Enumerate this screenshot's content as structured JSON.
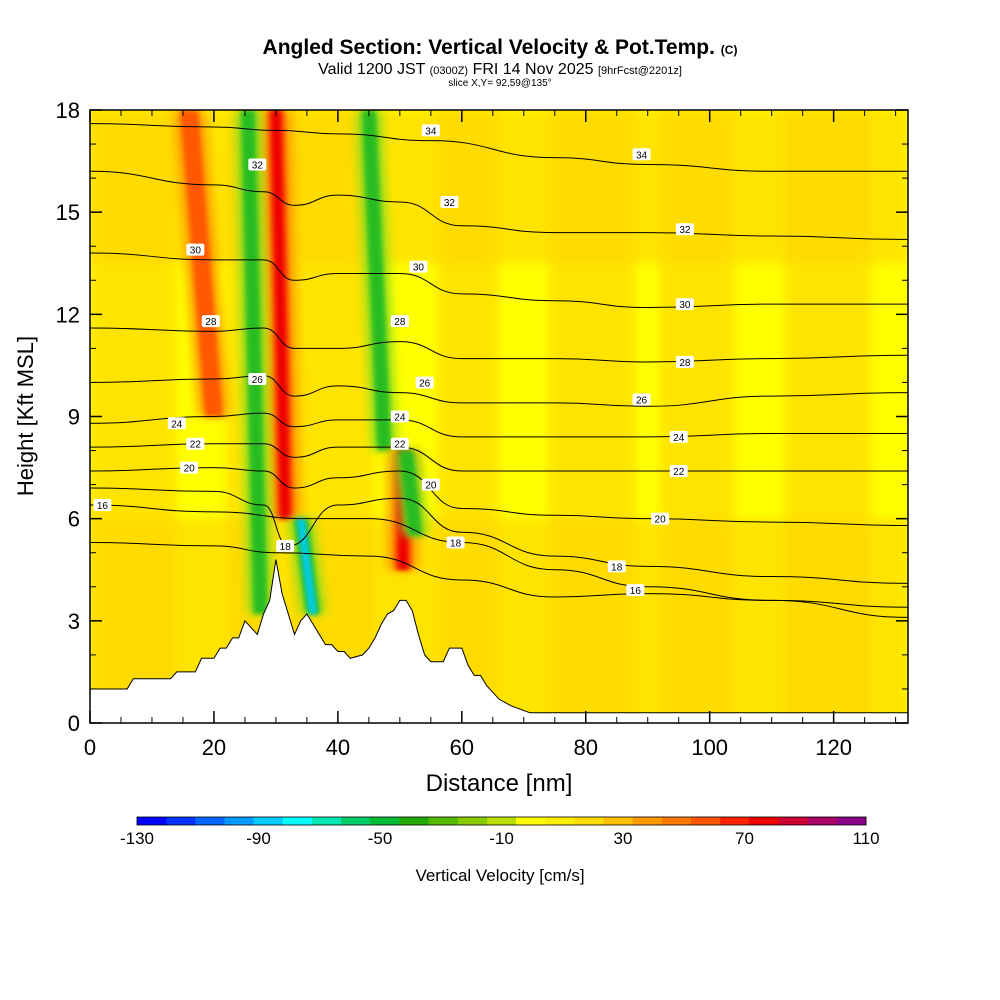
{
  "header": {
    "title": "Angled Section: Vertical Velocity & Pot.Temp.",
    "copyright": "(C)",
    "valid_prefix": "Valid 1200 JST",
    "valid_z": "(0300Z)",
    "valid_date": "FRI 14 Nov 2025",
    "forecast": "[9hrFcst@2201z]",
    "slice": "slice X,Y= 92,59@135°"
  },
  "colors": {
    "bg_yellow": "#ffff00",
    "gold": "#ffd700",
    "orange": "#ff9900",
    "orange_red": "#ff5500",
    "red": "#ee0000",
    "green": "#22bb22",
    "light_green": "#88dd22",
    "cyan": "#00ccee",
    "terrain": "#ffffff"
  },
  "chart_data": {
    "type": "heatmap",
    "title": "Angled Section: Vertical Velocity & Pot.Temp.",
    "xlabel": "Distance [nm]",
    "ylabel": "Height [Kft MSL]",
    "xlim": [
      0,
      132
    ],
    "ylim": [
      0,
      18
    ],
    "x_ticks": [
      0,
      20,
      40,
      60,
      80,
      100,
      120
    ],
    "y_ticks": [
      0,
      3,
      6,
      9,
      12,
      15,
      18
    ],
    "x_tick_labels": [
      "0",
      "20",
      "40",
      "60",
      "80",
      "100",
      "120"
    ],
    "y_tick_labels": [
      "0",
      "3",
      "6",
      "9",
      "12",
      "15",
      "18"
    ],
    "colorbar": {
      "label": "Vertical Velocity [cm/s]",
      "min": -130,
      "max": 110,
      "step": 10,
      "tick_values": [
        -130,
        -90,
        -50,
        -10,
        30,
        70,
        110
      ],
      "tick_labels": [
        "-130",
        "-90",
        "-50",
        "-10",
        "30",
        "70",
        "110"
      ],
      "colors": [
        "#0000ff",
        "#0033ff",
        "#0066ff",
        "#0099ff",
        "#00ccff",
        "#00ffff",
        "#00e6b3",
        "#00cc66",
        "#00bb33",
        "#22aa00",
        "#55bb00",
        "#88cc00",
        "#bbdd00",
        "#ffff00",
        "#ffee00",
        "#ffdd00",
        "#ffc000",
        "#ff9900",
        "#ff7700",
        "#ff5500",
        "#ff2200",
        "#ee0000",
        "#cc0033",
        "#aa0066",
        "#880088"
      ]
    },
    "terrain_profile": {
      "x": [
        0,
        6,
        7,
        13,
        14,
        17,
        18,
        20,
        21,
        22,
        23,
        24,
        25,
        27,
        28,
        29,
        30,
        31,
        32,
        33,
        34,
        35,
        36,
        37,
        38,
        39,
        40,
        41,
        42,
        44,
        45,
        46,
        47,
        48,
        49,
        50,
        51,
        52,
        53,
        54,
        55,
        57,
        58,
        60,
        61,
        62,
        63,
        64,
        65,
        66,
        68,
        71,
        73,
        132
      ],
      "height": [
        1.0,
        1.0,
        1.3,
        1.3,
        1.5,
        1.5,
        1.9,
        1.9,
        2.2,
        2.2,
        2.5,
        2.5,
        3.0,
        2.6,
        3.2,
        3.6,
        4.8,
        3.8,
        3.2,
        2.6,
        3.0,
        3.2,
        2.9,
        2.6,
        2.3,
        2.3,
        2.1,
        2.1,
        1.9,
        2.0,
        2.2,
        2.5,
        2.9,
        3.2,
        3.3,
        3.6,
        3.6,
        3.3,
        2.6,
        2.0,
        1.8,
        1.8,
        2.2,
        2.2,
        1.7,
        1.4,
        1.4,
        1.1,
        0.9,
        0.7,
        0.5,
        0.3,
        0.3,
        0.3
      ]
    },
    "velocity_features": [
      {
        "kind": "updraft",
        "x": 20,
        "z_from": 9,
        "z_to": 18,
        "tilt_nm": -4,
        "max_cm_s": 50
      },
      {
        "kind": "updraft",
        "x": 31.5,
        "z_from": 6,
        "z_to": 18,
        "tilt_nm": -1.5,
        "max_cm_s": 70
      },
      {
        "kind": "downdraft",
        "x": 27.5,
        "z_from": 3.2,
        "z_to": 18,
        "tilt_nm": -2,
        "min_cm_s": -50
      },
      {
        "kind": "downdraft",
        "x": 36,
        "z_from": 3.2,
        "z_to": 6,
        "tilt_nm": -2,
        "min_cm_s": -90
      },
      {
        "kind": "downdraft",
        "x": 47.5,
        "z_from": 8,
        "z_to": 18,
        "tilt_nm": -2.5,
        "min_cm_s": -50
      },
      {
        "kind": "updraft",
        "x": 50.5,
        "z_from": 4.5,
        "z_to": 8,
        "tilt_nm": 0,
        "max_cm_s": 70
      },
      {
        "kind": "downdraft",
        "x": 52.5,
        "z_from": 5.5,
        "z_to": 8,
        "tilt_nm": -1.5,
        "min_cm_s": -30
      }
    ],
    "isentropes": [
      {
        "label": "16",
        "heights": [
          [
            0,
            6.4
          ],
          [
            20,
            6.2
          ],
          [
            35,
            6.0
          ],
          [
            45,
            6.0
          ],
          [
            60,
            5.3
          ],
          [
            75,
            4.5
          ],
          [
            90,
            4.0
          ],
          [
            110,
            3.6
          ],
          [
            132,
            3.1
          ]
        ]
      },
      {
        "label": "16",
        "heights": [
          [
            0,
            5.3
          ],
          [
            20,
            5.2
          ],
          [
            30,
            5.0
          ],
          [
            45,
            4.9
          ],
          [
            60,
            4.2
          ],
          [
            75,
            3.7
          ],
          [
            90,
            3.8
          ],
          [
            110,
            3.6
          ],
          [
            132,
            3.4
          ]
        ]
      },
      {
        "label": "18",
        "heights": [
          [
            0,
            6.9
          ],
          [
            20,
            6.8
          ],
          [
            28,
            6.4
          ],
          [
            32,
            5.2
          ],
          [
            40,
            6.4
          ],
          [
            50,
            6.6
          ],
          [
            60,
            5.6
          ],
          [
            75,
            4.9
          ],
          [
            90,
            4.6
          ],
          [
            110,
            4.3
          ],
          [
            132,
            4.1
          ]
        ]
      },
      {
        "label": "20",
        "heights": [
          [
            0,
            7.4
          ],
          [
            20,
            7.5
          ],
          [
            28,
            7.4
          ],
          [
            33,
            6.9
          ],
          [
            40,
            7.2
          ],
          [
            50,
            7.4
          ],
          [
            60,
            6.3
          ],
          [
            75,
            6.1
          ],
          [
            90,
            6.0
          ],
          [
            110,
            5.9
          ],
          [
            132,
            5.8
          ]
        ]
      },
      {
        "label": "22",
        "heights": [
          [
            0,
            8.1
          ],
          [
            20,
            8.2
          ],
          [
            28,
            8.2
          ],
          [
            33,
            7.8
          ],
          [
            40,
            8.1
          ],
          [
            50,
            8.1
          ],
          [
            60,
            7.4
          ],
          [
            75,
            7.4
          ],
          [
            90,
            7.4
          ],
          [
            110,
            7.4
          ],
          [
            132,
            7.4
          ]
        ]
      },
      {
        "label": "24",
        "heights": [
          [
            0,
            8.8
          ],
          [
            20,
            9.0
          ],
          [
            28,
            9.1
          ],
          [
            33,
            8.7
          ],
          [
            40,
            8.9
          ],
          [
            50,
            8.9
          ],
          [
            60,
            8.4
          ],
          [
            75,
            8.4
          ],
          [
            90,
            8.4
          ],
          [
            110,
            8.5
          ],
          [
            132,
            8.5
          ]
        ]
      },
      {
        "label": "26",
        "heights": [
          [
            0,
            10.0
          ],
          [
            20,
            10.1
          ],
          [
            28,
            10.2
          ],
          [
            33,
            9.6
          ],
          [
            40,
            9.9
          ],
          [
            50,
            9.7
          ],
          [
            60,
            9.4
          ],
          [
            75,
            9.4
          ],
          [
            90,
            9.3
          ],
          [
            110,
            9.6
          ],
          [
            132,
            9.7
          ]
        ]
      },
      {
        "label": "28",
        "heights": [
          [
            0,
            11.6
          ],
          [
            20,
            11.5
          ],
          [
            28,
            11.6
          ],
          [
            33,
            11.0
          ],
          [
            40,
            11.0
          ],
          [
            50,
            11.2
          ],
          [
            60,
            10.7
          ],
          [
            75,
            10.7
          ],
          [
            90,
            10.6
          ],
          [
            110,
            10.7
          ],
          [
            132,
            10.8
          ]
        ]
      },
      {
        "label": "30",
        "heights": [
          [
            0,
            13.8
          ],
          [
            20,
            13.6
          ],
          [
            28,
            13.6
          ],
          [
            33,
            13.0
          ],
          [
            40,
            13.2
          ],
          [
            50,
            13.2
          ],
          [
            60,
            12.6
          ],
          [
            75,
            12.4
          ],
          [
            90,
            12.2
          ],
          [
            110,
            12.3
          ],
          [
            132,
            12.3
          ]
        ]
      },
      {
        "label": "32",
        "heights": [
          [
            0,
            16.2
          ],
          [
            20,
            15.8
          ],
          [
            28,
            15.6
          ],
          [
            33,
            15.2
          ],
          [
            40,
            15.5
          ],
          [
            50,
            15.3
          ],
          [
            60,
            14.6
          ],
          [
            75,
            14.4
          ],
          [
            90,
            14.4
          ],
          [
            110,
            14.3
          ],
          [
            132,
            14.2
          ]
        ]
      },
      {
        "label": "34",
        "heights": [
          [
            0,
            17.6
          ],
          [
            20,
            17.5
          ],
          [
            30,
            17.4
          ],
          [
            40,
            17.3
          ],
          [
            55,
            17.1
          ],
          [
            75,
            16.6
          ],
          [
            90,
            16.4
          ],
          [
            110,
            16.2
          ],
          [
            132,
            16.2
          ]
        ]
      }
    ],
    "isentrope_labels": [
      {
        "text": "16",
        "x": 2,
        "z": 6.4
      },
      {
        "text": "16",
        "x": 88,
        "z": 3.9
      },
      {
        "text": "18",
        "x": 31.5,
        "z": 5.2
      },
      {
        "text": "18",
        "x": 59,
        "z": 5.3
      },
      {
        "text": "18",
        "x": 85,
        "z": 4.6
      },
      {
        "text": "20",
        "x": 16,
        "z": 7.5
      },
      {
        "text": "20",
        "x": 55,
        "z": 7.0
      },
      {
        "text": "20",
        "x": 92,
        "z": 6.0
      },
      {
        "text": "22",
        "x": 17,
        "z": 8.2
      },
      {
        "text": "22",
        "x": 50,
        "z": 8.2
      },
      {
        "text": "22",
        "x": 95,
        "z": 7.4
      },
      {
        "text": "24",
        "x": 14,
        "z": 8.8
      },
      {
        "text": "24",
        "x": 50,
        "z": 9.0
      },
      {
        "text": "24",
        "x": 95,
        "z": 8.4
      },
      {
        "text": "26",
        "x": 27,
        "z": 10.1
      },
      {
        "text": "26",
        "x": 54,
        "z": 10.0
      },
      {
        "text": "26",
        "x": 89,
        "z": 9.5
      },
      {
        "text": "28",
        "x": 19.5,
        "z": 11.8
      },
      {
        "text": "28",
        "x": 50,
        "z": 11.8
      },
      {
        "text": "28",
        "x": 96,
        "z": 10.6
      },
      {
        "text": "30",
        "x": 17,
        "z": 13.9
      },
      {
        "text": "30",
        "x": 53,
        "z": 13.4
      },
      {
        "text": "30",
        "x": 96,
        "z": 12.3
      },
      {
        "text": "32",
        "x": 27,
        "z": 16.4
      },
      {
        "text": "32",
        "x": 58,
        "z": 15.3
      },
      {
        "text": "32",
        "x": 96,
        "z": 14.5
      },
      {
        "text": "34",
        "x": 55,
        "z": 17.4
      },
      {
        "text": "34",
        "x": 89,
        "z": 16.7
      }
    ]
  }
}
